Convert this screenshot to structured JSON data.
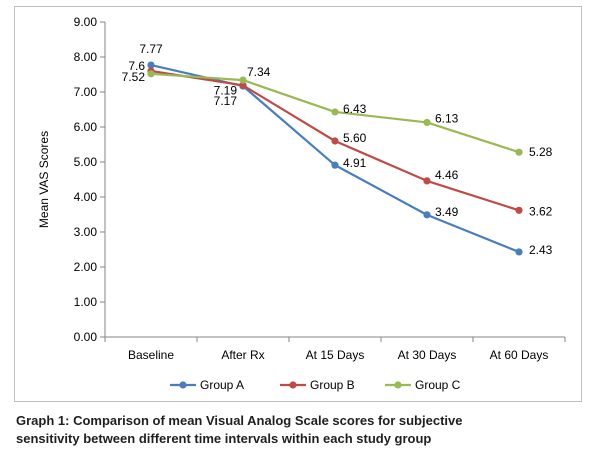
{
  "chart_data": {
    "type": "line",
    "title": "",
    "xlabel": "",
    "ylabel": "Mean VAS Scores",
    "categories": [
      "Baseline",
      "After Rx",
      "At 15 Days",
      "At 30 Days",
      "At 60 Days"
    ],
    "yticks": [
      "0.00",
      "1.00",
      "2.00",
      "3.00",
      "4.00",
      "5.00",
      "6.00",
      "7.00",
      "8.00",
      "9.00"
    ],
    "ylim": [
      0,
      9
    ],
    "grid": false,
    "legend_position": "bottom",
    "series": [
      {
        "name": "Group A",
        "color": "#4a7ebb",
        "values": [
          7.77,
          7.17,
          4.91,
          3.49,
          2.43
        ],
        "labels": [
          "7.77",
          "7.17",
          "4.91",
          "3.49",
          "2.43"
        ]
      },
      {
        "name": "Group B",
        "color": "#be4b48",
        "values": [
          7.6,
          7.19,
          5.6,
          4.46,
          3.62
        ],
        "labels": [
          "7.6",
          "7.19",
          "5.60",
          "4.46",
          "3.62"
        ]
      },
      {
        "name": "Group C",
        "color": "#98b954",
        "values": [
          7.52,
          7.34,
          6.43,
          6.13,
          5.28
        ],
        "labels": [
          "7.52",
          "7.34",
          "6.43",
          "6.13",
          "5.28"
        ]
      }
    ]
  },
  "caption": {
    "line1": "Graph 1: Comparison of mean Visual Analog Scale scores for subjective",
    "line2": "sensitivity between different time intervals within each study group"
  }
}
